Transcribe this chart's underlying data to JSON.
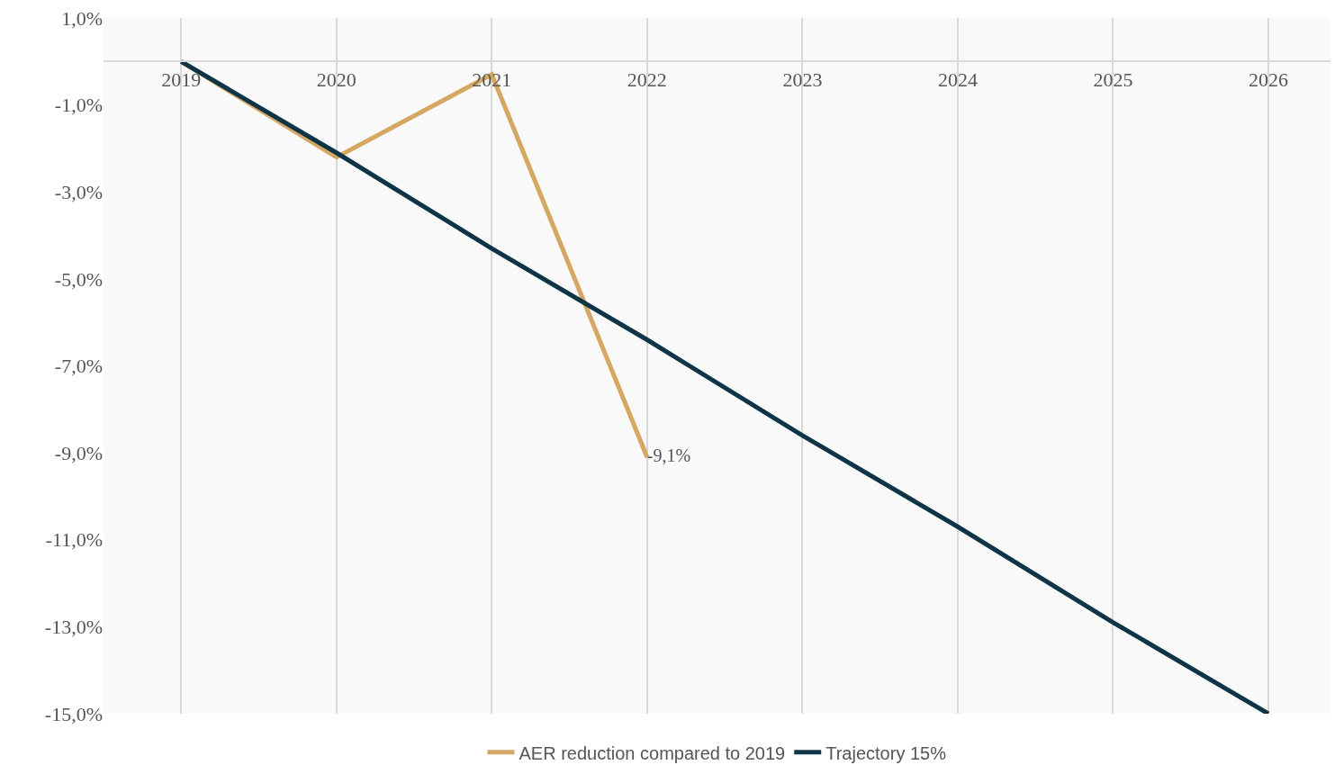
{
  "chart_data": {
    "type": "line",
    "categories": [
      "2019",
      "2020",
      "2021",
      "2022",
      "2023",
      "2024",
      "2025",
      "2026"
    ],
    "series": [
      {
        "name": "AER reduction compared to 2019",
        "color": "#d4a862",
        "values": [
          0,
          -2.2,
          -0.3,
          -9.1,
          null,
          null,
          null,
          null
        ],
        "value_labels": [
          null,
          null,
          null,
          "-9,1%",
          null,
          null,
          null,
          null
        ]
      },
      {
        "name": "Trajectory 15%",
        "color": "#0d3547",
        "values": [
          0,
          -2.1,
          -4.3,
          -6.4,
          -8.6,
          -10.7,
          -12.9,
          -15.0
        ]
      }
    ],
    "ylim": [
      -15,
      1
    ],
    "yticks": [
      {
        "value": 1,
        "label": "1,0%"
      },
      {
        "value": -1,
        "label": "-1,0%"
      },
      {
        "value": -3,
        "label": "-3,0%"
      },
      {
        "value": -5,
        "label": "-5,0%"
      },
      {
        "value": -7,
        "label": "-7,0%"
      },
      {
        "value": -9,
        "label": "-9,0%"
      },
      {
        "value": -11,
        "label": "-11,0%"
      },
      {
        "value": -13,
        "label": "-13,0%"
      },
      {
        "value": -15,
        "label": "-15,0%"
      }
    ],
    "grid": "x",
    "legend": "bottom",
    "marker": "none",
    "line_style": "solid"
  }
}
